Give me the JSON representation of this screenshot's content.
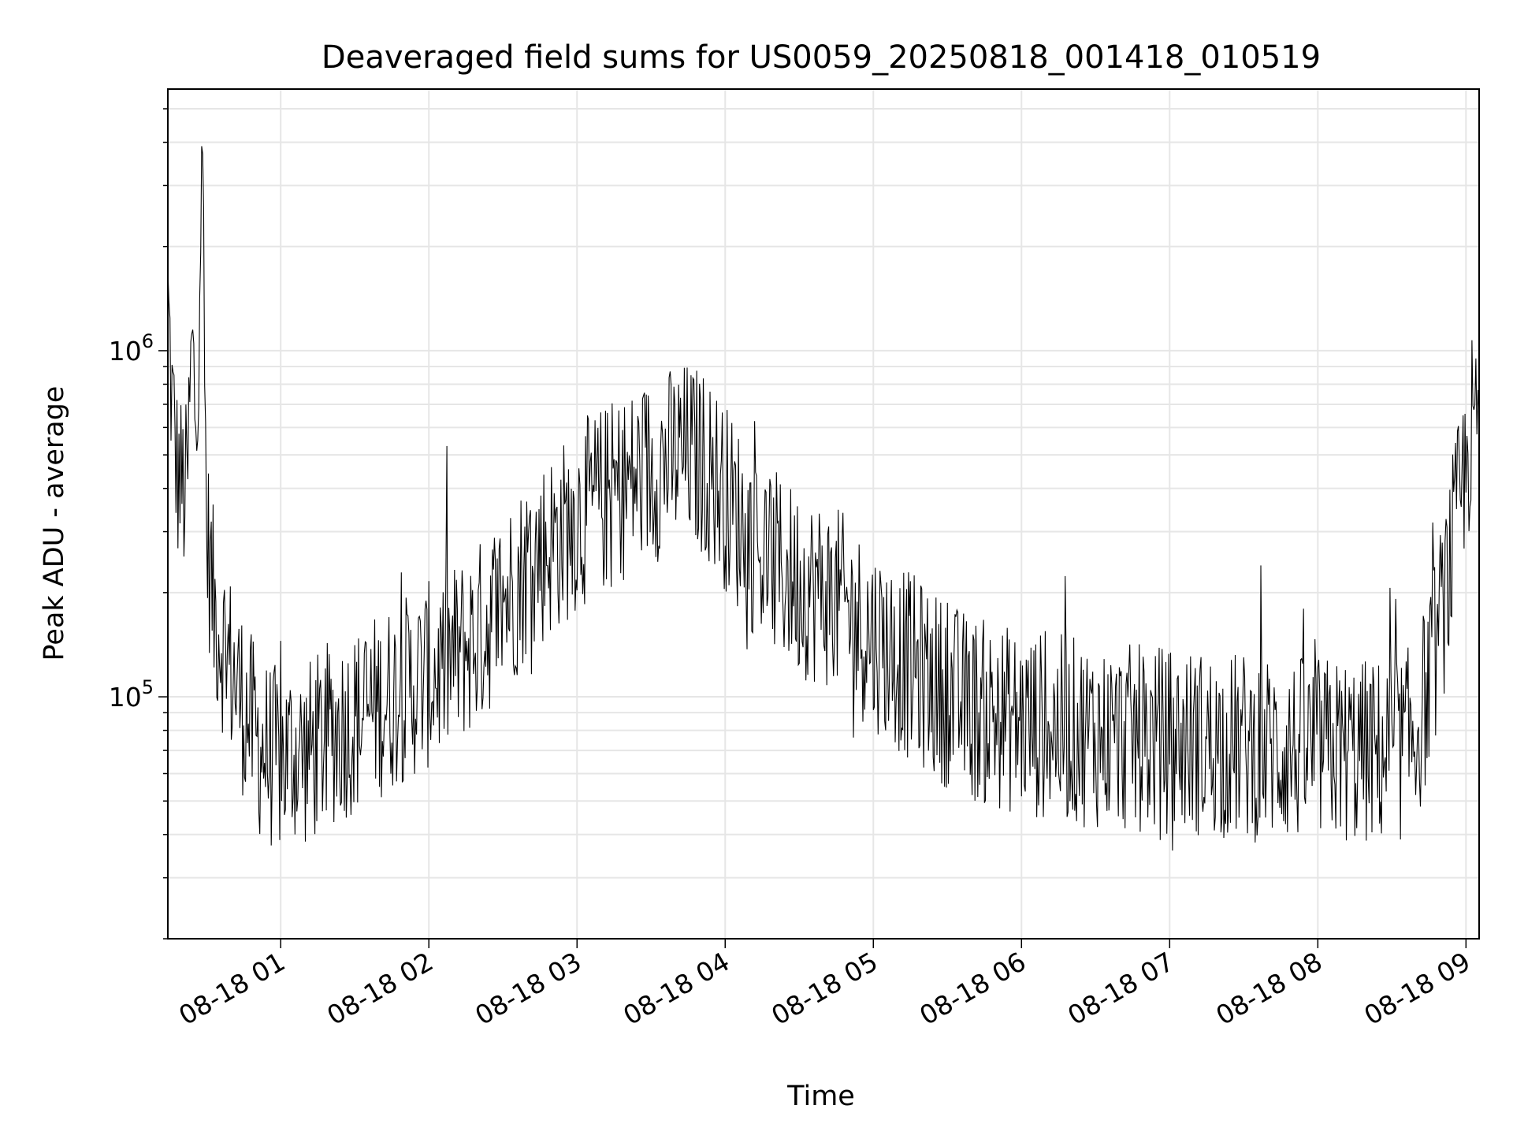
{
  "chart_data": {
    "type": "line",
    "title": "Deaveraged field sums for US0059_20250818_001418_010519",
    "xlabel": "Time",
    "ylabel": "Peak ADU - average",
    "yscale": "log",
    "ylim": [
      20000,
      5700000
    ],
    "xlim": [
      "2025-08-18T00:14:18",
      "2025-08-18T09:05:19"
    ],
    "xticks": [
      {
        "t": "2025-08-18T01:00:00",
        "label": "08-18 01"
      },
      {
        "t": "2025-08-18T02:00:00",
        "label": "08-18 02"
      },
      {
        "t": "2025-08-18T03:00:00",
        "label": "08-18 03"
      },
      {
        "t": "2025-08-18T04:00:00",
        "label": "08-18 04"
      },
      {
        "t": "2025-08-18T05:00:00",
        "label": "08-18 05"
      },
      {
        "t": "2025-08-18T06:00:00",
        "label": "08-18 06"
      },
      {
        "t": "2025-08-18T07:00:00",
        "label": "08-18 07"
      },
      {
        "t": "2025-08-18T08:00:00",
        "label": "08-18 08"
      },
      {
        "t": "2025-08-18T09:00:00",
        "label": "08-18 09"
      }
    ],
    "yticks": [
      {
        "value": 100000,
        "base": "10",
        "exp": "5"
      },
      {
        "value": 1000000,
        "base": "10",
        "exp": "6"
      }
    ],
    "grid": true,
    "line_color": "#000000",
    "series": [
      {
        "x": [
          "00:14:18",
          "00:16:00",
          "00:18:00",
          "00:20:00",
          "00:22:00",
          "00:24:00",
          "00:26:00",
          "00:28:00",
          "00:30:00",
          "00:33:00",
          "00:36:00",
          "00:40:00",
          "00:45:00",
          "00:50:00",
          "00:55:00",
          "01:00:00",
          "01:05:00",
          "01:10:00",
          "01:15:00",
          "01:20:00",
          "01:25:00",
          "01:30:00",
          "01:35:00",
          "01:40:00",
          "01:45:00",
          "01:50:00",
          "01:55:00",
          "02:00:00",
          "02:05:00",
          "02:10:00",
          "02:15:00",
          "02:20:00",
          "02:25:00",
          "02:30:00",
          "02:35:00",
          "02:40:00",
          "02:45:00",
          "02:50:00",
          "02:55:00",
          "03:00:00",
          "03:05:00",
          "03:10:00",
          "03:15:00",
          "03:20:00",
          "03:25:00",
          "03:30:00",
          "03:35:00",
          "03:40:00",
          "03:45:00",
          "03:50:00",
          "03:55:00",
          "04:00:00",
          "04:05:00",
          "04:10:00",
          "04:15:00",
          "04:20:00",
          "04:25:00",
          "04:30:00",
          "04:35:00",
          "04:40:00",
          "04:45:00",
          "04:50:00",
          "04:55:00",
          "05:00:00",
          "05:05:00",
          "05:10:00",
          "05:15:00",
          "05:20:00",
          "05:25:00",
          "05:30:00",
          "05:35:00",
          "05:40:00",
          "05:45:00",
          "05:50:00",
          "05:55:00",
          "06:00:00",
          "06:05:00",
          "06:10:00",
          "06:15:00",
          "06:20:00",
          "06:25:00",
          "06:30:00",
          "06:35:00",
          "06:40:00",
          "06:45:00",
          "06:50:00",
          "06:55:00",
          "07:00:00",
          "07:05:00",
          "07:10:00",
          "07:15:00",
          "07:20:00",
          "07:25:00",
          "07:30:00",
          "07:35:00",
          "07:40:00",
          "07:45:00",
          "07:50:00",
          "07:55:00",
          "08:00:00",
          "08:05:00",
          "08:10:00",
          "08:15:00",
          "08:20:00",
          "08:25:00",
          "08:30:00",
          "08:35:00",
          "08:40:00",
          "08:45:00",
          "08:50:00",
          "08:55:00",
          "09:00:00",
          "09:02:00",
          "09:04:00",
          "09:05:19"
        ],
        "y": [
          1400000,
          700000,
          450000,
          400000,
          380000,
          1000000,
          600000,
          4000000,
          300000,
          180000,
          150000,
          120000,
          95000,
          75000,
          68000,
          65000,
          70000,
          68000,
          72000,
          78000,
          82000,
          85000,
          90000,
          95000,
          100000,
          105000,
          110000,
          115000,
          120000,
          130000,
          140000,
          150000,
          170000,
          190000,
          210000,
          240000,
          260000,
          280000,
          300000,
          330000,
          350000,
          370000,
          390000,
          410000,
          430000,
          450000,
          470000,
          490000,
          500000,
          480000,
          440000,
          380000,
          330000,
          290000,
          260000,
          240000,
          225000,
          215000,
          205000,
          200000,
          190000,
          175000,
          160000,
          150000,
          140000,
          130000,
          122000,
          115000,
          108000,
          102000,
          97000,
          93000,
          90000,
          88000,
          86000,
          84000,
          83000,
          82000,
          81000,
          80000,
          79000,
          78000,
          77000,
          76000,
          76000,
          75000,
          75000,
          75000,
          74000,
          74000,
          73000,
          73000,
          72000,
          72000,
          71000,
          71000,
          70000,
          70000,
          70000,
          70000,
          70000,
          70000,
          69000,
          69000,
          69000,
          70000,
          72000,
          80000,
          110000,
          170000,
          280000,
          450000,
          600000,
          550000,
          650000
        ]
      }
    ]
  }
}
